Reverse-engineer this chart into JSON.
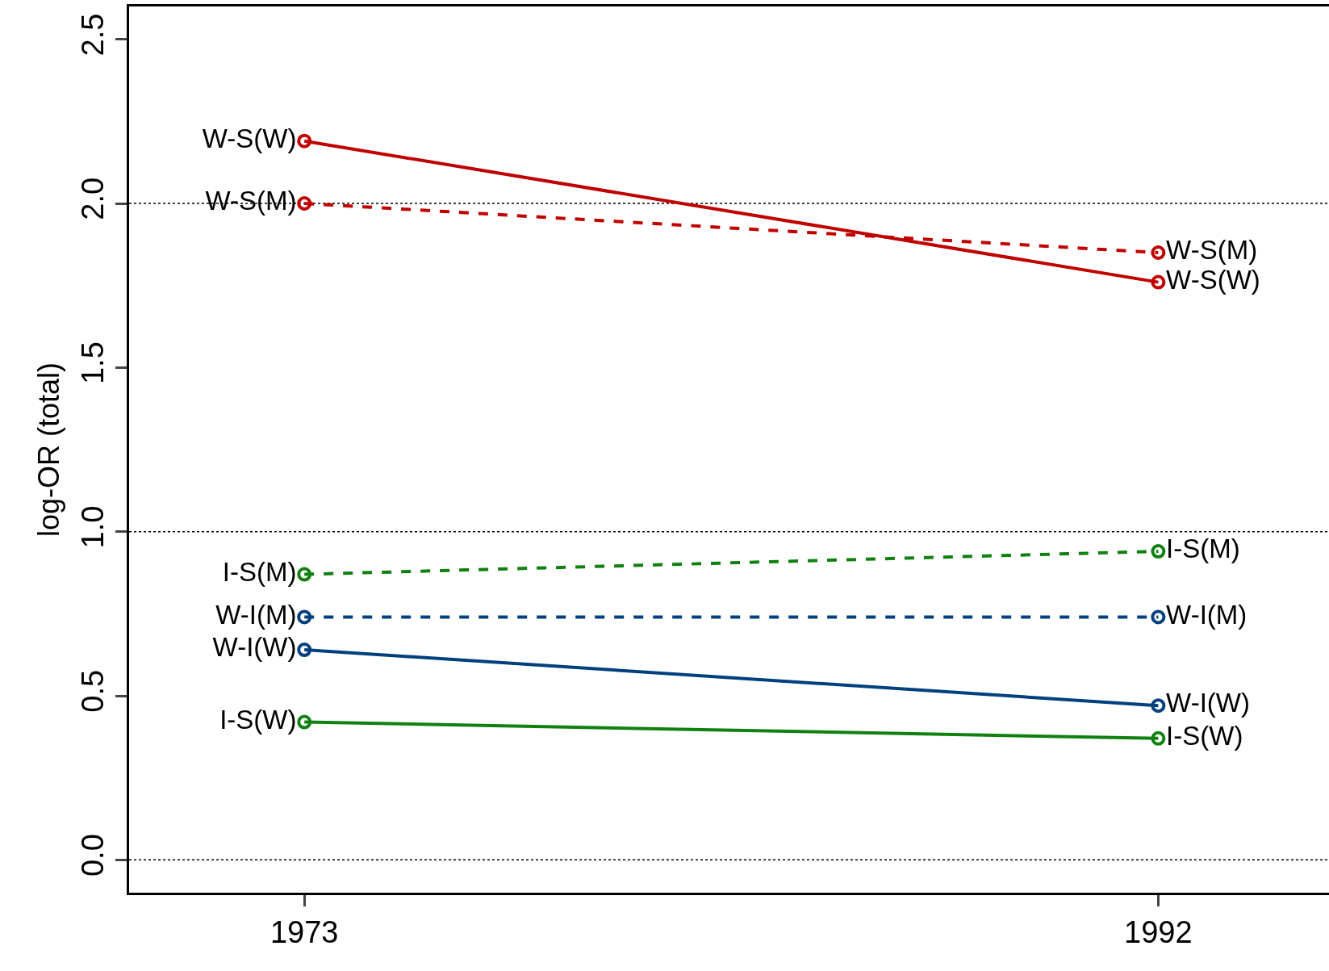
{
  "chart_data": {
    "type": "line",
    "ylabel": "log-OR (total)",
    "x": [
      1973,
      1992
    ],
    "xlim": [
      1969.1,
      1995.8
    ],
    "xticks": [
      1973,
      1992
    ],
    "ylim": [
      -0.1,
      2.6
    ],
    "yticks": [
      {
        "value": 0,
        "label": "0.0"
      },
      {
        "value": 0.5,
        "label": "0.5"
      },
      {
        "value": 1,
        "label": "1.0"
      },
      {
        "value": 1.5,
        "label": "1.5"
      },
      {
        "value": 2,
        "label": "2.0"
      },
      {
        "value": 2.5,
        "label": "2.5"
      }
    ],
    "marker": "circle",
    "grid": false,
    "legend": false,
    "series": [
      {
        "name": "W-S(W)",
        "color": "#c00000",
        "values": [
          2.19,
          1.76
        ],
        "line_style": "solid"
      },
      {
        "name": "W-S(M)",
        "color": "#c00000",
        "values": [
          2.0,
          1.85
        ],
        "line_style": "dashed"
      },
      {
        "name": "I-S(M)",
        "color": "#108010",
        "values": [
          0.87,
          0.94
        ],
        "line_style": "dashed"
      },
      {
        "name": "W-I(M)",
        "color": "#00407f",
        "values": [
          0.74,
          0.74
        ],
        "line_style": "dashed"
      },
      {
        "name": "W-I(W)",
        "color": "#00407f",
        "values": [
          0.64,
          0.47
        ],
        "line_style": "solid"
      },
      {
        "name": "I-S(W)",
        "color": "#108010",
        "values": [
          0.42,
          0.37
        ],
        "line_style": "solid"
      }
    ],
    "ref_lines": [
      {
        "axis": "y",
        "value": 0,
        "line_style": "dotted",
        "color": "#000000"
      },
      {
        "axis": "y",
        "value": 1,
        "line_style": "dotted",
        "color": "#000000"
      },
      {
        "axis": "y",
        "value": 2,
        "line_style": "dotted",
        "color": "#000000"
      }
    ]
  }
}
